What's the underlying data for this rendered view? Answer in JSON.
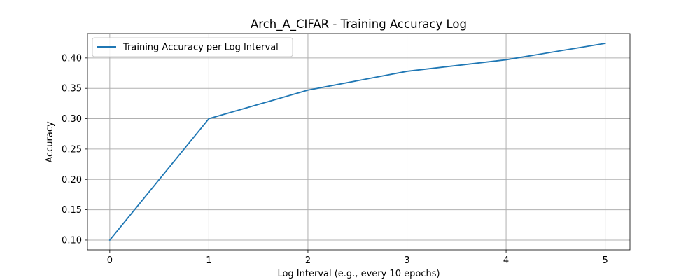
{
  "chart_data": {
    "type": "line",
    "title": "Arch_A_CIFAR - Training Accuracy Log",
    "xlabel": "Log Interval (e.g., every 10 epochs)",
    "ylabel": "Accuracy",
    "x": [
      0,
      1,
      2,
      3,
      4,
      5
    ],
    "series": [
      {
        "name": "Training Accuracy per Log Interval",
        "values": [
          0.1,
          0.3,
          0.347,
          0.378,
          0.397,
          0.424
        ],
        "color": "#1f77b4"
      }
    ],
    "xlim": [
      -0.225,
      5.25
    ],
    "ylim": [
      0.0838,
      0.4402
    ],
    "xticks": [
      0,
      1,
      2,
      3,
      4,
      5
    ],
    "xtick_labels": [
      "0",
      "1",
      "2",
      "3",
      "4",
      "5"
    ],
    "yticks": [
      0.1,
      0.15,
      0.2,
      0.25,
      0.3,
      0.35,
      0.4
    ],
    "ytick_labels": [
      "0.10",
      "0.15",
      "0.20",
      "0.25",
      "0.30",
      "0.35",
      "0.40"
    ],
    "grid": true,
    "legend": "upper-left",
    "colors": {
      "grid": "#b0b0b0",
      "axes": "#000000",
      "line": "#1f77b4",
      "legend_border": "#cccccc"
    }
  }
}
